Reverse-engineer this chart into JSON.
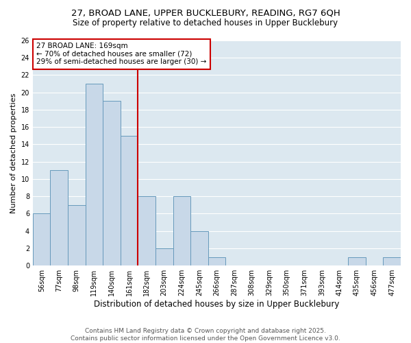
{
  "title1": "27, BROAD LANE, UPPER BUCKLEBURY, READING, RG7 6QH",
  "title2": "Size of property relative to detached houses in Upper Bucklebury",
  "xlabel": "Distribution of detached houses by size in Upper Bucklebury",
  "ylabel": "Number of detached properties",
  "bins": [
    "56sqm",
    "77sqm",
    "98sqm",
    "119sqm",
    "140sqm",
    "161sqm",
    "182sqm",
    "203sqm",
    "224sqm",
    "245sqm",
    "266sqm",
    "287sqm",
    "308sqm",
    "329sqm",
    "350sqm",
    "371sqm",
    "393sqm",
    "414sqm",
    "435sqm",
    "456sqm",
    "477sqm"
  ],
  "values": [
    6,
    11,
    7,
    21,
    19,
    15,
    8,
    2,
    8,
    4,
    1,
    0,
    0,
    0,
    0,
    0,
    0,
    0,
    1,
    0,
    1
  ],
  "bar_color": "#c8d8e8",
  "bar_edge_color": "#6699bb",
  "vline_x": 6.0,
  "vline_color": "#cc0000",
  "annotation_text": "27 BROAD LANE: 169sqm\n← 70% of detached houses are smaller (72)\n29% of semi-detached houses are larger (30) →",
  "annotation_box_color": "#ffffff",
  "annotation_box_edge": "#cc0000",
  "ylim": [
    0,
    26
  ],
  "yticks": [
    0,
    2,
    4,
    6,
    8,
    10,
    12,
    14,
    16,
    18,
    20,
    22,
    24,
    26
  ],
  "background_color": "#dce8f0",
  "grid_color": "#ffffff",
  "footnote": "Contains HM Land Registry data © Crown copyright and database right 2025.\nContains public sector information licensed under the Open Government Licence v3.0.",
  "title1_fontsize": 9.5,
  "title2_fontsize": 8.5,
  "xlabel_fontsize": 8.5,
  "ylabel_fontsize": 8,
  "tick_fontsize": 7,
  "annotation_fontsize": 7.5,
  "footnote_fontsize": 6.5
}
